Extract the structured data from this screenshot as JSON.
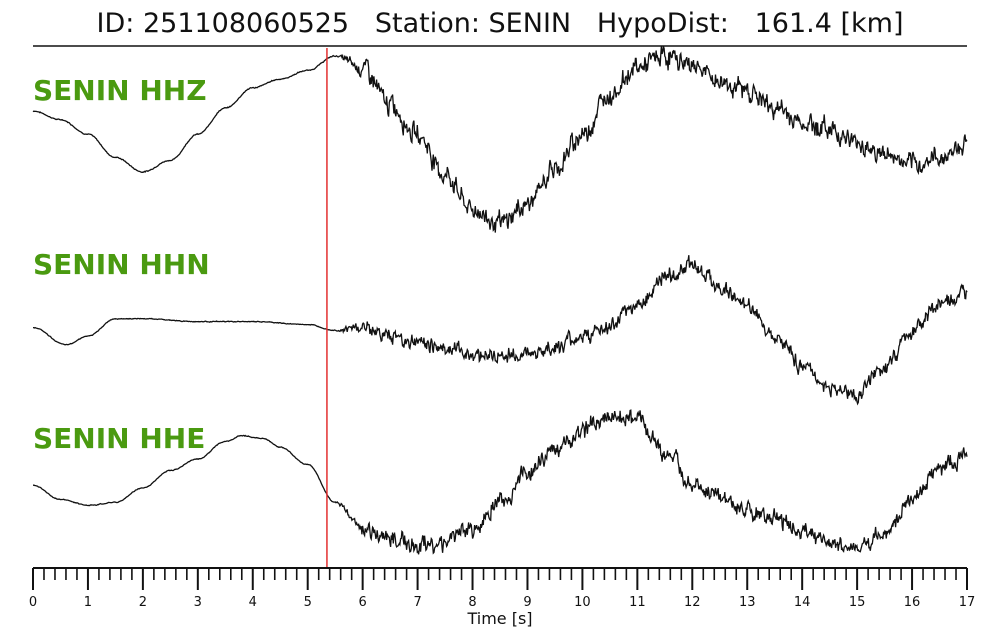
{
  "header": {
    "id_label": "ID:",
    "id_value": "251108060525",
    "station_label": "Station:",
    "station_value": "SENIN",
    "dist_label": "HypoDist:",
    "dist_value": "161.4 [km]"
  },
  "colors": {
    "label": "#4a9a10",
    "trace": "#111111",
    "pick": "#e33030",
    "axis": "#111111"
  },
  "chart_data": {
    "type": "line",
    "title": "",
    "xlabel": "Time [s]",
    "ylabel": "",
    "xlim": [
      0,
      17
    ],
    "x_ticks": [
      "0",
      "1",
      "2",
      "3",
      "4",
      "5",
      "6",
      "7",
      "8",
      "9",
      "10",
      "11",
      "12",
      "13",
      "14",
      "15",
      "16",
      "17"
    ],
    "pick_time": 5.35,
    "grid": false,
    "series": [
      {
        "name": "SENIN HHZ",
        "points": [
          [
            0,
            0.5
          ],
          [
            0.5,
            0.35
          ],
          [
            1,
            0.1
          ],
          [
            1.5,
            -0.3
          ],
          [
            2,
            -0.55
          ],
          [
            2.5,
            -0.35
          ],
          [
            3,
            0.1
          ],
          [
            3.5,
            0.55
          ],
          [
            4,
            0.9
          ],
          [
            4.5,
            1.05
          ],
          [
            5,
            1.2
          ],
          [
            5.5,
            1.45
          ],
          [
            6,
            1.25
          ],
          [
            6.5,
            0.6
          ],
          [
            7,
            0.1
          ],
          [
            7.5,
            -0.6
          ],
          [
            8,
            -1.2
          ],
          [
            8.5,
            -1.45
          ],
          [
            9,
            -1.1
          ],
          [
            9.5,
            -0.5
          ],
          [
            10,
            0.1
          ],
          [
            10.5,
            0.8
          ],
          [
            11,
            1.25
          ],
          [
            11.5,
            1.45
          ],
          [
            12,
            1.3
          ],
          [
            12.5,
            1.0
          ],
          [
            13,
            0.85
          ],
          [
            13.5,
            0.55
          ],
          [
            14,
            0.3
          ],
          [
            14.5,
            0.2
          ],
          [
            15,
            -0.05
          ],
          [
            15.5,
            -0.25
          ],
          [
            16,
            -0.45
          ],
          [
            16.5,
            -0.3
          ],
          [
            17,
            -0.05
          ]
        ],
        "noise": 0.12,
        "noise_onset": 5.5
      },
      {
        "name": "SENIN HHN",
        "points": [
          [
            0,
            -0.3
          ],
          [
            0.6,
            -0.6
          ],
          [
            1,
            -0.45
          ],
          [
            1.5,
            -0.15
          ],
          [
            2,
            -0.15
          ],
          [
            3,
            -0.2
          ],
          [
            4,
            -0.2
          ],
          [
            5,
            -0.25
          ],
          [
            5.5,
            -0.35
          ],
          [
            6,
            -0.3
          ],
          [
            6.5,
            -0.45
          ],
          [
            7,
            -0.55
          ],
          [
            7.5,
            -0.65
          ],
          [
            8,
            -0.75
          ],
          [
            8.5,
            -0.8
          ],
          [
            9,
            -0.75
          ],
          [
            9.5,
            -0.65
          ],
          [
            10,
            -0.45
          ],
          [
            10.5,
            -0.3
          ],
          [
            11,
            0.1
          ],
          [
            11.5,
            0.55
          ],
          [
            12,
            0.8
          ],
          [
            12.5,
            0.4
          ],
          [
            13,
            0.05
          ],
          [
            13.5,
            -0.4
          ],
          [
            14,
            -0.95
          ],
          [
            14.5,
            -1.35
          ],
          [
            15,
            -1.45
          ],
          [
            15.5,
            -1.0
          ],
          [
            16,
            -0.35
          ],
          [
            16.5,
            0.1
          ],
          [
            17,
            0.25
          ]
        ],
        "noise": 0.09,
        "noise_onset": 5.5
      },
      {
        "name": "SENIN HHE",
        "points": [
          [
            0,
            0.0
          ],
          [
            0.5,
            -0.25
          ],
          [
            1,
            -0.35
          ],
          [
            1.5,
            -0.3
          ],
          [
            2,
            -0.05
          ],
          [
            2.5,
            0.25
          ],
          [
            3,
            0.45
          ],
          [
            3.5,
            0.75
          ],
          [
            3.8,
            0.85
          ],
          [
            4.2,
            0.8
          ],
          [
            4.5,
            0.65
          ],
          [
            5,
            0.35
          ],
          [
            5.5,
            -0.3
          ],
          [
            6,
            -0.75
          ],
          [
            6.5,
            -0.9
          ],
          [
            7,
            -1.05
          ],
          [
            7.5,
            -1.0
          ],
          [
            8,
            -0.75
          ],
          [
            8.5,
            -0.3
          ],
          [
            9,
            0.2
          ],
          [
            9.5,
            0.6
          ],
          [
            10,
            0.95
          ],
          [
            10.5,
            1.2
          ],
          [
            11,
            1.15
          ],
          [
            11.5,
            0.55
          ],
          [
            12,
            0.05
          ],
          [
            12.5,
            -0.25
          ],
          [
            13,
            -0.45
          ],
          [
            13.5,
            -0.6
          ],
          [
            14,
            -0.8
          ],
          [
            14.5,
            -1.0
          ],
          [
            15,
            -1.1
          ],
          [
            15.5,
            -0.85
          ],
          [
            16,
            -0.25
          ],
          [
            16.5,
            0.3
          ],
          [
            17,
            0.5
          ]
        ],
        "noise": 0.1,
        "noise_onset": 5.5
      }
    ]
  }
}
